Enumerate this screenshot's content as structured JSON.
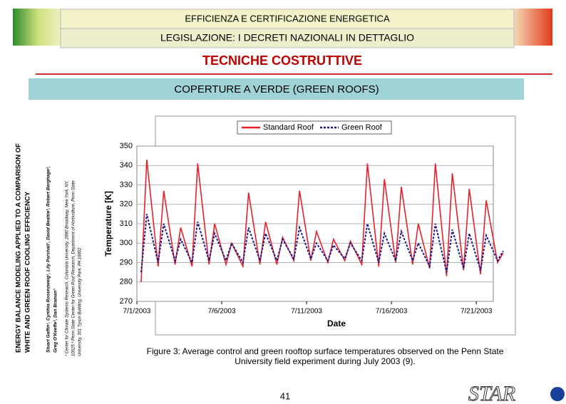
{
  "slide": {
    "header1": "EFFICIENZA E CERTIFICAZIONE ENERGETICA",
    "header2": "LEGISLAZIONE: I DECRETI NAZIONALI IN DETTAGLIO",
    "title": "TECNICHE COSTRUTTIVE",
    "subtitle": "COPERTURE A VERDE (GREEN ROOFS)",
    "paper_title": [
      "ENERGY BALANCE MODELING APPLIED TO A COMPARISON OF",
      "WHITE AND GREEN ROOF COOLING EFFICIENCY"
    ],
    "authors": [
      "Stuart Gaffin¹, Cynthia Rosenzweig¹, Lily Parshall¹, David Beattie², Robert Berghage²,",
      "Greg O'Keeffe², Dan Braman³"
    ],
    "affiliations": [
      "¹ Center for Climate Systems Research, Columbia University, 2880 Broadway, New York, NY,",
      "10025 ² Penn State Center for Green Roof Research, Department of Horticulture, Penn State",
      "University, 301 Tyson Building, University Park, PA 16802"
    ],
    "caption": [
      "Figure 3: Average control and green rooftop surface temperatures observed on the Penn State",
      "University field experiment during July 2003 (9)."
    ],
    "page_number": "41",
    "logo": "STAR"
  },
  "chart_data": {
    "type": "line",
    "x_label": "Date",
    "y_label": "Temperature [K]",
    "x": [
      "2003-07-01T06:00",
      "2003-07-01T14:00",
      "2003-07-02T06:00",
      "2003-07-02T14:00",
      "2003-07-03T06:00",
      "2003-07-03T14:00",
      "2003-07-04T06:00",
      "2003-07-04T14:00",
      "2003-07-05T06:00",
      "2003-07-05T14:00",
      "2003-07-06T06:00",
      "2003-07-06T14:00",
      "2003-07-07T06:00",
      "2003-07-07T14:00",
      "2003-07-08T06:00",
      "2003-07-08T14:00",
      "2003-07-09T06:00",
      "2003-07-09T14:00",
      "2003-07-10T06:00",
      "2003-07-10T14:00",
      "2003-07-11T06:00",
      "2003-07-11T14:00",
      "2003-07-12T06:00",
      "2003-07-12T14:00",
      "2003-07-13T06:00",
      "2003-07-13T14:00",
      "2003-07-14T06:00",
      "2003-07-14T14:00",
      "2003-07-15T06:00",
      "2003-07-15T14:00",
      "2003-07-16T06:00",
      "2003-07-16T14:00",
      "2003-07-17T06:00",
      "2003-07-17T14:00",
      "2003-07-18T06:00",
      "2003-07-18T14:00",
      "2003-07-19T06:00",
      "2003-07-19T14:00",
      "2003-07-20T06:00",
      "2003-07-20T14:00",
      "2003-07-21T06:00",
      "2003-07-21T14:00",
      "2003-07-22T06:00",
      "2003-07-22T14:00"
    ],
    "series": [
      {
        "name": "Standard Roof",
        "color": "#e8202a",
        "style": "solid",
        "values": [
          280,
          343,
          288,
          327,
          289,
          308,
          288,
          341,
          289,
          310,
          289,
          300,
          288,
          326,
          289,
          311,
          289,
          303,
          291,
          327,
          291,
          306,
          290,
          302,
          291,
          301,
          289,
          341,
          288,
          333,
          290,
          329,
          289,
          310,
          287,
          341,
          283,
          336,
          286,
          328,
          284,
          322,
          290,
          295
        ]
      },
      {
        "name": "Green Roof",
        "color": "#1a1a8c",
        "style": "dashed",
        "values": [
          285,
          315,
          290,
          310,
          291,
          302,
          290,
          311,
          291,
          305,
          291,
          300,
          290,
          308,
          291,
          305,
          291,
          302,
          292,
          308,
          292,
          300,
          291,
          299,
          292,
          300,
          291,
          310,
          290,
          305,
          291,
          306,
          291,
          300,
          288,
          310,
          285,
          307,
          287,
          305,
          286,
          304,
          291,
          296
        ]
      }
    ],
    "xlim": [
      "2003-07-01",
      "2003-07-22"
    ],
    "xticks": [
      {
        "value": "2003-07-01",
        "label": "7/1/2003"
      },
      {
        "value": "2003-07-06",
        "label": "7/6/2003"
      },
      {
        "value": "2003-07-11",
        "label": "7/11/2003"
      },
      {
        "value": "2003-07-16",
        "label": "7/16/2003"
      },
      {
        "value": "2003-07-21",
        "label": "7/21/2003"
      }
    ],
    "ylim": [
      270,
      350
    ],
    "yticks": [
      270,
      280,
      290,
      300,
      310,
      320,
      330,
      340,
      350
    ],
    "grid": true,
    "legend": "top"
  }
}
